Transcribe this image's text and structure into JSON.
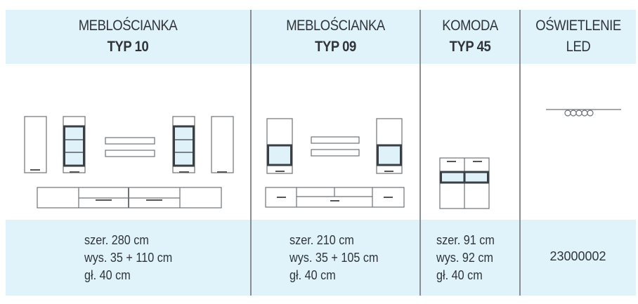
{
  "colors": {
    "band": "#e0f3fb",
    "divider": "#8a8d90",
    "text": "#2f3438",
    "glass": "#dff2f9",
    "frame": "#3a3f44"
  },
  "columns": [
    {
      "title": "MEBLOŚCIANKA",
      "subtitle": "TYP 10",
      "specs": [
        "szer. 280 cm",
        "wys. 35 + 110 cm",
        "gł. 40 cm"
      ]
    },
    {
      "title": "MEBLOŚCIANKA",
      "subtitle": "TYP 09",
      "specs": [
        "szer. 210 cm",
        "wys. 35 + 105 cm",
        "gł. 40 cm"
      ]
    },
    {
      "title": "KOMODA",
      "subtitle": "TYP 45",
      "specs": [
        "szer. 91 cm",
        "wys. 92 cm",
        "gł. 40 cm"
      ]
    },
    {
      "title": "OŚWIETLENIE",
      "subtitle": "LED",
      "code": "23000002"
    }
  ]
}
